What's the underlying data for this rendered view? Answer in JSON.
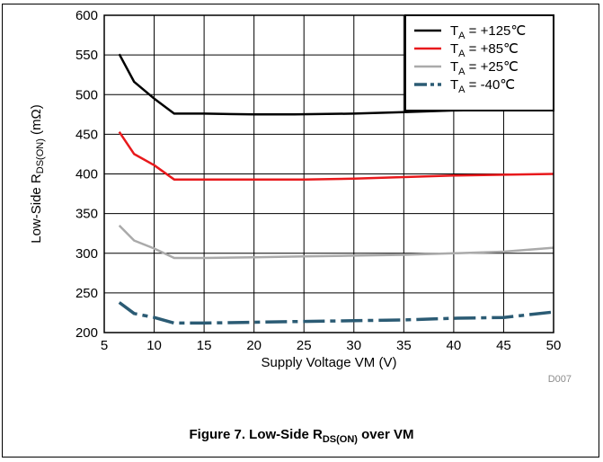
{
  "chart_data": {
    "type": "line",
    "title": "",
    "xlabel": "Supply Voltage VM (V)",
    "ylabel": "Low-Side R_DS(ON) (mΩ)",
    "ylabel_parts": {
      "pre": "Low-Side R",
      "sub": "DS(ON)",
      "post": " (mΩ)"
    },
    "xlim": [
      5,
      50
    ],
    "ylim": [
      200,
      600
    ],
    "x_ticks": [
      5,
      10,
      15,
      20,
      25,
      30,
      35,
      40,
      45,
      50
    ],
    "y_ticks": [
      200,
      250,
      300,
      350,
      400,
      450,
      500,
      550,
      600
    ],
    "grid": true,
    "legend_position": "top-right",
    "chart_id": "D007",
    "series": [
      {
        "name": "T_A = +125℃",
        "legend_parts": {
          "pre": "T",
          "sub": "A",
          "post": " = +125℃"
        },
        "color": "#000000",
        "dash": "solid",
        "points": [
          [
            6.5,
            551
          ],
          [
            8,
            516
          ],
          [
            10,
            495
          ],
          [
            12,
            476
          ],
          [
            15,
            476
          ],
          [
            20,
            475
          ],
          [
            24,
            475
          ],
          [
            30,
            476
          ],
          [
            35,
            478
          ],
          [
            40,
            480
          ],
          [
            45,
            481
          ],
          [
            50,
            481
          ]
        ]
      },
      {
        "name": "T_A = +85℃",
        "legend_parts": {
          "pre": "T",
          "sub": "A",
          "post": " = +85℃"
        },
        "color": "#e8191c",
        "dash": "solid",
        "points": [
          [
            6.5,
            453
          ],
          [
            8,
            425
          ],
          [
            10,
            411
          ],
          [
            12,
            393
          ],
          [
            15,
            393
          ],
          [
            20,
            393
          ],
          [
            25,
            393
          ],
          [
            30,
            394
          ],
          [
            35,
            396
          ],
          [
            40,
            398
          ],
          [
            45,
            399
          ],
          [
            50,
            400
          ]
        ]
      },
      {
        "name": "T_A = +25℃",
        "legend_parts": {
          "pre": "T",
          "sub": "A",
          "post": " = +25℃"
        },
        "color": "#aaaaaa",
        "dash": "solid",
        "points": [
          [
            6.5,
            335
          ],
          [
            8,
            316
          ],
          [
            10,
            306
          ],
          [
            12,
            294
          ],
          [
            15,
            294
          ],
          [
            20,
            295
          ],
          [
            25,
            296
          ],
          [
            30,
            297
          ],
          [
            35,
            298
          ],
          [
            40,
            300
          ],
          [
            45,
            302
          ],
          [
            50,
            307
          ]
        ]
      },
      {
        "name": "T_A = -40℃",
        "legend_parts": {
          "pre": "T",
          "sub": "A",
          "post": " = -40℃"
        },
        "color": "#2b5b74",
        "dash": "dashdot",
        "points": [
          [
            6.5,
            238
          ],
          [
            8,
            224
          ],
          [
            10,
            219
          ],
          [
            12,
            212
          ],
          [
            15,
            212
          ],
          [
            20,
            213
          ],
          [
            25,
            214
          ],
          [
            30,
            215
          ],
          [
            35,
            216
          ],
          [
            40,
            218
          ],
          [
            45,
            219
          ],
          [
            50,
            226
          ]
        ]
      }
    ]
  },
  "caption": {
    "pre": "Figure 7. Low-Side R",
    "sub": "DS(ON)",
    "post": " over VM"
  }
}
